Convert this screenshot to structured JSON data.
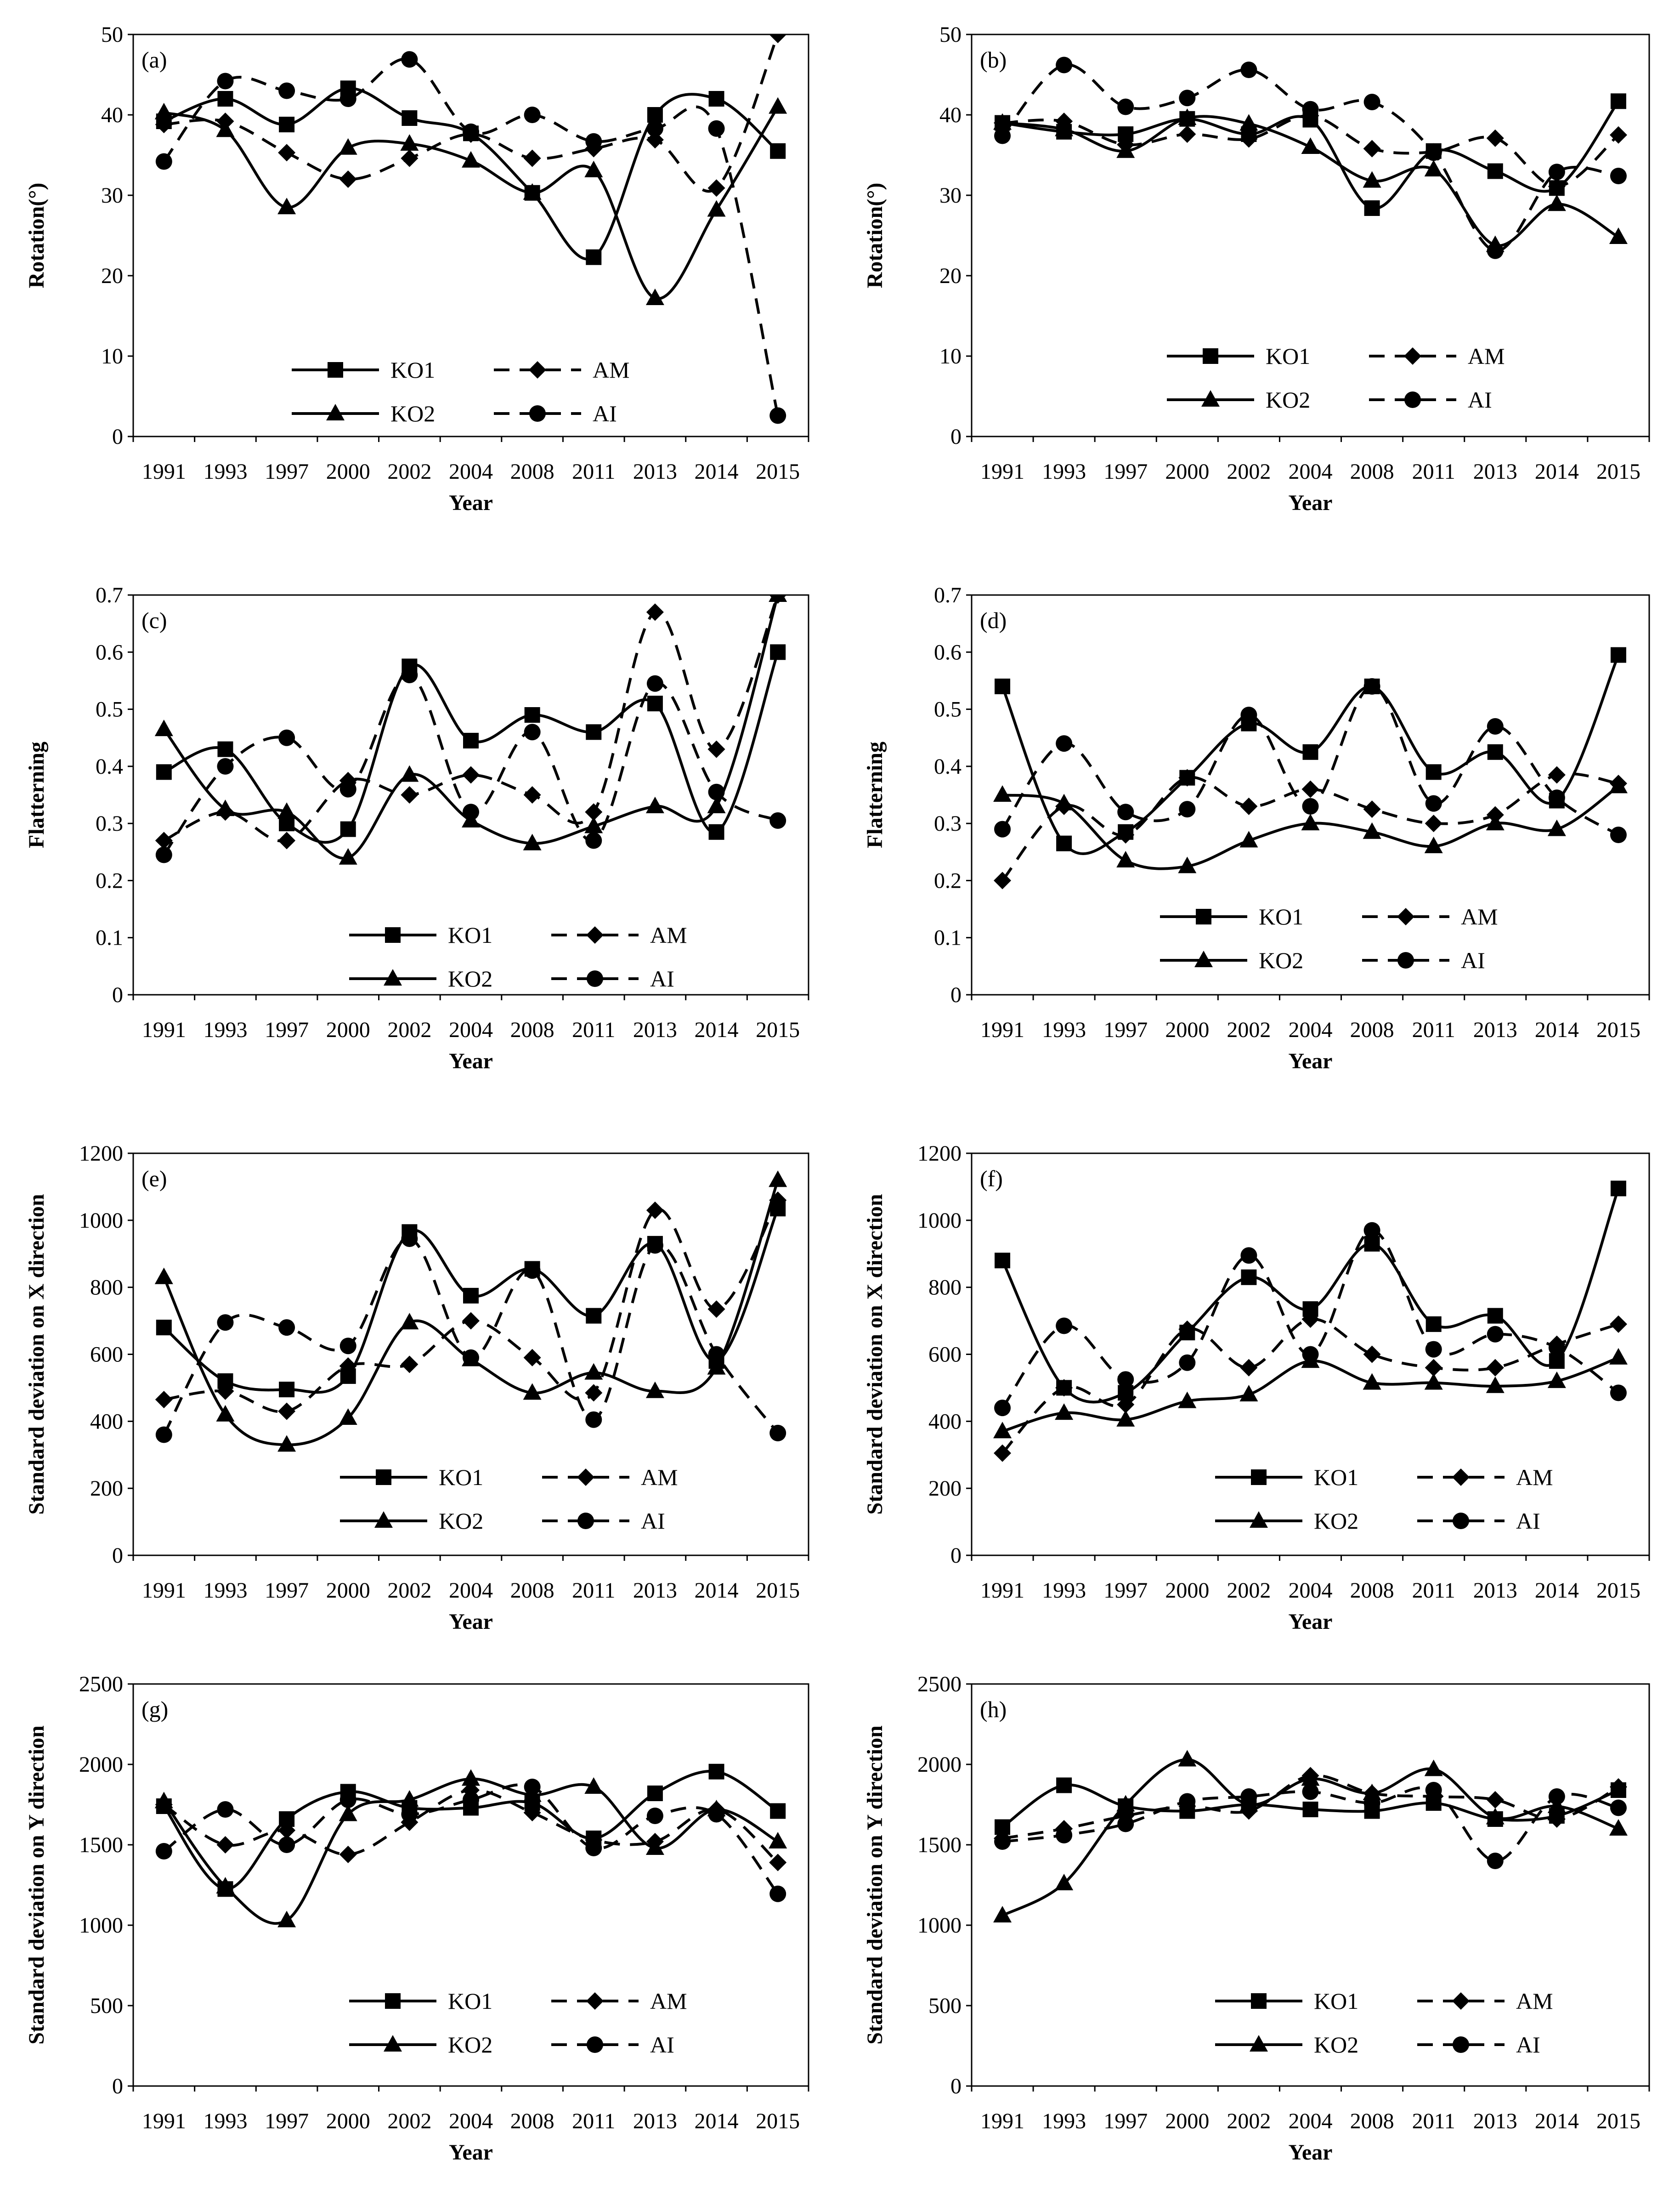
{
  "chart_data": [
    {
      "id": "a",
      "type": "line",
      "panel_label": "(a)",
      "ylabel": "Rotation(°)",
      "xlabel": "Year",
      "categories": [
        "1991",
        "1993",
        "1997",
        "2000",
        "2002",
        "2004",
        "2008",
        "2011",
        "2013",
        "2014",
        "2015"
      ],
      "ylim": [
        0,
        50
      ],
      "yticks": [
        0,
        10,
        20,
        30,
        40,
        50
      ],
      "ytick_labels": [
        "0",
        "10",
        "20",
        "30",
        "40",
        "50"
      ],
      "series": [
        {
          "name": "KO1",
          "style": "solid",
          "marker": "square",
          "values": [
            39.2,
            42.0,
            38.8,
            43.3,
            39.6,
            37.7,
            30.3,
            22.3,
            40.0,
            42.0,
            35.5
          ]
        },
        {
          "name": "AM",
          "style": "dashed",
          "marker": "diamond",
          "values": [
            38.8,
            39.2,
            35.3,
            32.0,
            34.6,
            37.6,
            34.6,
            35.8,
            36.9,
            30.9,
            50.0
          ]
        },
        {
          "name": "KO2",
          "style": "solid",
          "marker": "triangle",
          "values": [
            40.3,
            38.1,
            28.5,
            35.9,
            36.4,
            34.3,
            30.3,
            33.1,
            17.2,
            28.2,
            41.0
          ]
        },
        {
          "name": "AI",
          "style": "dashed",
          "marker": "circle",
          "values": [
            34.2,
            44.2,
            43.0,
            42.0,
            46.9,
            37.9,
            40.0,
            36.7,
            38.3,
            38.3,
            2.6
          ]
        }
      ]
    },
    {
      "id": "b",
      "type": "line",
      "panel_label": "(b)",
      "ylabel": "Rotation(°)",
      "xlabel": "Year",
      "categories": [
        "1991",
        "1993",
        "1997",
        "2000",
        "2002",
        "2004",
        "2008",
        "2011",
        "2013",
        "2014",
        "2015"
      ],
      "ylim": [
        0,
        50
      ],
      "yticks": [
        0,
        10,
        20,
        30,
        40,
        50
      ],
      "ytick_labels": [
        "0",
        "10",
        "20",
        "30",
        "40",
        "50"
      ],
      "series": [
        {
          "name": "KO1",
          "style": "solid",
          "marker": "square",
          "values": [
            39.0,
            37.9,
            37.6,
            39.5,
            37.6,
            39.4,
            28.4,
            35.5,
            33.0,
            30.9,
            41.7
          ]
        },
        {
          "name": "AM",
          "style": "dashed",
          "marker": "diamond",
          "values": [
            39.0,
            39.2,
            36.3,
            37.6,
            37.0,
            39.9,
            35.8,
            35.4,
            37.1,
            31.1,
            37.5
          ]
        },
        {
          "name": "KO2",
          "style": "solid",
          "marker": "triangle",
          "values": [
            39.0,
            38.2,
            35.5,
            39.6,
            38.9,
            36.0,
            31.8,
            33.2,
            23.8,
            28.9,
            24.8
          ]
        },
        {
          "name": "AI",
          "style": "dashed",
          "marker": "circle",
          "values": [
            37.4,
            46.2,
            41.0,
            42.1,
            45.6,
            40.7,
            41.6,
            35.3,
            23.1,
            32.9,
            32.4
          ]
        }
      ]
    },
    {
      "id": "c",
      "type": "line",
      "panel_label": "(c)",
      "ylabel": "Flatterning",
      "xlabel": "Year",
      "categories": [
        "1991",
        "1993",
        "1997",
        "2000",
        "2002",
        "2004",
        "2008",
        "2011",
        "2013",
        "2014",
        "2015"
      ],
      "ylim": [
        0,
        0.7
      ],
      "yticks": [
        0,
        0.1,
        0.2,
        0.3,
        0.4,
        0.5,
        0.6,
        0.7
      ],
      "ytick_labels": [
        "0",
        "0.1",
        "0.2",
        "0.3",
        "0.4",
        "0.5",
        "0.6",
        "0.7"
      ],
      "series": [
        {
          "name": "KO1",
          "style": "solid",
          "marker": "square",
          "values": [
            0.39,
            0.43,
            0.3,
            0.29,
            0.575,
            0.445,
            0.49,
            0.46,
            0.51,
            0.285,
            0.6
          ]
        },
        {
          "name": "AM",
          "style": "dashed",
          "marker": "diamond",
          "values": [
            0.27,
            0.32,
            0.27,
            0.375,
            0.35,
            0.385,
            0.35,
            0.32,
            0.67,
            0.43,
            0.7
          ]
        },
        {
          "name": "KO2",
          "style": "solid",
          "marker": "triangle",
          "values": [
            0.465,
            0.325,
            0.32,
            0.24,
            0.385,
            0.305,
            0.265,
            0.295,
            0.33,
            0.33,
            0.7
          ]
        },
        {
          "name": "AI",
          "style": "dashed",
          "marker": "circle",
          "values": [
            0.245,
            0.4,
            0.45,
            0.36,
            0.56,
            0.32,
            0.46,
            0.27,
            0.545,
            0.355,
            0.305
          ]
        }
      ]
    },
    {
      "id": "d",
      "type": "line",
      "panel_label": "(d)",
      "ylabel": "Flatterning",
      "xlabel": "Year",
      "categories": [
        "1991",
        "1993",
        "1997",
        "2000",
        "2002",
        "2004",
        "2008",
        "2011",
        "2013",
        "2014",
        "2015"
      ],
      "ylim": [
        0,
        0.7
      ],
      "yticks": [
        0,
        0.1,
        0.2,
        0.3,
        0.4,
        0.5,
        0.6,
        0.7
      ],
      "ytick_labels": [
        "0",
        "0.1",
        "0.2",
        "0.3",
        "0.4",
        "0.5",
        "0.6",
        "0.7"
      ],
      "series": [
        {
          "name": "KO1",
          "style": "solid",
          "marker": "square",
          "values": [
            0.54,
            0.265,
            0.285,
            0.38,
            0.475,
            0.425,
            0.54,
            0.39,
            0.425,
            0.34,
            0.595
          ]
        },
        {
          "name": "AM",
          "style": "dashed",
          "marker": "diamond",
          "values": [
            0.2,
            0.33,
            0.28,
            0.38,
            0.33,
            0.36,
            0.325,
            0.3,
            0.315,
            0.385,
            0.37
          ]
        },
        {
          "name": "KO2",
          "style": "solid",
          "marker": "triangle",
          "values": [
            0.35,
            0.335,
            0.235,
            0.225,
            0.27,
            0.3,
            0.285,
            0.26,
            0.3,
            0.29,
            0.365
          ]
        },
        {
          "name": "AI",
          "style": "dashed",
          "marker": "circle",
          "values": [
            0.29,
            0.44,
            0.32,
            0.325,
            0.49,
            0.33,
            0.54,
            0.335,
            0.47,
            0.345,
            0.28
          ]
        }
      ]
    },
    {
      "id": "e",
      "type": "line",
      "panel_label": "(e)",
      "ylabel": "Standard deviation on X direction",
      "xlabel": "Year",
      "categories": [
        "1991",
        "1993",
        "1997",
        "2000",
        "2002",
        "2004",
        "2008",
        "2011",
        "2013",
        "2014",
        "2015"
      ],
      "ylim": [
        0,
        1200
      ],
      "yticks": [
        0,
        200,
        400,
        600,
        800,
        1000,
        1200
      ],
      "ytick_labels": [
        "0",
        "200",
        "400",
        "600",
        "800",
        "1000",
        "1200"
      ],
      "series": [
        {
          "name": "KO1",
          "style": "solid",
          "marker": "square",
          "values": [
            680,
            520,
            495,
            535,
            965,
            775,
            855,
            715,
            930,
            580,
            1035
          ]
        },
        {
          "name": "AM",
          "style": "dashed",
          "marker": "diamond",
          "values": [
            465,
            490,
            430,
            565,
            570,
            700,
            590,
            485,
            1030,
            735,
            1060
          ]
        },
        {
          "name": "KO2",
          "style": "solid",
          "marker": "triangle",
          "values": [
            830,
            420,
            330,
            410,
            695,
            585,
            485,
            545,
            490,
            560,
            1120
          ]
        },
        {
          "name": "AI",
          "style": "dashed",
          "marker": "circle",
          "values": [
            360,
            695,
            680,
            625,
            945,
            590,
            850,
            405,
            925,
            600,
            365
          ]
        }
      ]
    },
    {
      "id": "f",
      "type": "line",
      "panel_label": "(f)",
      "ylabel": "Standard deviation on X direction",
      "xlabel": "Year",
      "categories": [
        "1991",
        "1993",
        "1997",
        "2000",
        "2002",
        "2004",
        "2008",
        "2011",
        "2013",
        "2014",
        "2015"
      ],
      "ylim": [
        0,
        1200
      ],
      "yticks": [
        0,
        200,
        400,
        600,
        800,
        1000,
        1200
      ],
      "ytick_labels": [
        "0",
        "200",
        "400",
        "600",
        "800",
        "1000",
        "1200"
      ],
      "series": [
        {
          "name": "KO1",
          "style": "solid",
          "marker": "square",
          "values": [
            880,
            500,
            485,
            665,
            830,
            735,
            930,
            690,
            715,
            580,
            1095
          ]
        },
        {
          "name": "AM",
          "style": "dashed",
          "marker": "diamond",
          "values": [
            305,
            500,
            450,
            675,
            560,
            705,
            600,
            560,
            560,
            630,
            690
          ]
        },
        {
          "name": "KO2",
          "style": "solid",
          "marker": "triangle",
          "values": [
            370,
            425,
            405,
            460,
            480,
            580,
            515,
            515,
            505,
            520,
            590
          ]
        },
        {
          "name": "AI",
          "style": "dashed",
          "marker": "circle",
          "values": [
            440,
            685,
            525,
            575,
            895,
            600,
            970,
            615,
            660,
            620,
            485
          ]
        }
      ]
    },
    {
      "id": "g",
      "type": "line",
      "panel_label": "(g)",
      "ylabel": "Standard deviation on Y direction",
      "xlabel": "Year",
      "categories": [
        "1991",
        "1993",
        "1997",
        "2000",
        "2002",
        "2004",
        "2008",
        "2011",
        "2013",
        "2014",
        "2015"
      ],
      "ylim": [
        0,
        2500
      ],
      "yticks": [
        0,
        500,
        1000,
        1500,
        2000,
        2500
      ],
      "ytick_labels": [
        "0",
        "500",
        "1000",
        "1500",
        "2000",
        "2500"
      ],
      "series": [
        {
          "name": "KO1",
          "style": "solid",
          "marker": "square",
          "values": [
            1740,
            1225,
            1660,
            1830,
            1730,
            1730,
            1760,
            1540,
            1820,
            1955,
            1710
          ]
        },
        {
          "name": "AM",
          "style": "dashed",
          "marker": "diamond",
          "values": [
            1750,
            1500,
            1590,
            1440,
            1640,
            1840,
            1700,
            1530,
            1520,
            1720,
            1390
          ]
        },
        {
          "name": "KO2",
          "style": "solid",
          "marker": "triangle",
          "values": [
            1770,
            1240,
            1030,
            1690,
            1780,
            1910,
            1810,
            1860,
            1480,
            1720,
            1520
          ]
        },
        {
          "name": "AI",
          "style": "dashed",
          "marker": "circle",
          "values": [
            1460,
            1720,
            1500,
            1780,
            1690,
            1780,
            1860,
            1480,
            1680,
            1690,
            1195
          ]
        }
      ]
    },
    {
      "id": "h",
      "type": "line",
      "panel_label": "(h)",
      "ylabel": "Standard deviation on Y direction",
      "xlabel": "Year",
      "categories": [
        "1991",
        "1993",
        "1997",
        "2000",
        "2002",
        "2004",
        "2008",
        "2011",
        "2013",
        "2014",
        "2015"
      ],
      "ylim": [
        0,
        2500
      ],
      "yticks": [
        0,
        500,
        1000,
        1500,
        2000,
        2500
      ],
      "ytick_labels": [
        "0",
        "500",
        "1000",
        "1500",
        "2000",
        "2500"
      ],
      "series": [
        {
          "name": "KO1",
          "style": "solid",
          "marker": "square",
          "values": [
            1610,
            1870,
            1740,
            1710,
            1750,
            1720,
            1710,
            1760,
            1660,
            1680,
            1840
          ]
        },
        {
          "name": "AM",
          "style": "dashed",
          "marker": "diamond",
          "values": [
            1540,
            1600,
            1680,
            1740,
            1710,
            1930,
            1820,
            1800,
            1780,
            1660,
            1860
          ]
        },
        {
          "name": "KO2",
          "style": "solid",
          "marker": "triangle",
          "values": [
            1060,
            1260,
            1750,
            2030,
            1750,
            1910,
            1820,
            1970,
            1670,
            1740,
            1600
          ]
        },
        {
          "name": "AI",
          "style": "dashed",
          "marker": "circle",
          "values": [
            1520,
            1560,
            1630,
            1770,
            1800,
            1830,
            1760,
            1840,
            1400,
            1800,
            1730
          ]
        }
      ]
    }
  ]
}
